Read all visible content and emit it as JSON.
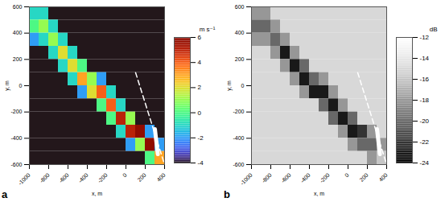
{
  "chart_data": [
    {
      "type": "heatmap",
      "panel_label": "a",
      "xlabel": "x, m",
      "ylabel": "y, m",
      "xlim": [
        -1000,
        400
      ],
      "ylim": [
        -600,
        600
      ],
      "xticks": [
        -1000,
        -800,
        -600,
        -400,
        -200,
        0,
        200,
        400
      ],
      "yticks": [
        -600,
        -400,
        -200,
        0,
        200,
        400,
        600
      ],
      "color": "jet",
      "x": [
        -950,
        -850,
        -750,
        -650,
        -550,
        -450,
        -350,
        -250,
        -150,
        -50,
        50,
        150,
        250,
        350
      ],
      "y": [
        550,
        450,
        350,
        250,
        150,
        50,
        -50,
        -150,
        -250,
        -350,
        -450,
        -550
      ],
      "cells": [
        [
          -1,
          -1,
          -4,
          -4,
          -4,
          -4,
          -4,
          -4,
          -4,
          -4,
          -4,
          -4,
          -4,
          -4
        ],
        [
          0,
          1,
          -1,
          -4,
          -4,
          -4,
          -4,
          -4,
          -4,
          -4,
          -4,
          -4,
          -4,
          -4
        ],
        [
          -2,
          -1,
          1,
          -1,
          -4,
          -4,
          -4,
          -4,
          -4,
          -4,
          -4,
          -4,
          -4,
          -4
        ],
        [
          -4,
          -4,
          -1,
          2,
          -1,
          -4,
          -4,
          -4,
          -4,
          -4,
          -4,
          -4,
          -4,
          -4
        ],
        [
          -4,
          -4,
          -4,
          -1,
          2,
          0,
          -4,
          -4,
          -4,
          -4,
          -4,
          -4,
          -4,
          -4
        ],
        [
          -4,
          -4,
          -4,
          -4,
          -1,
          3,
          1,
          -2,
          -4,
          -4,
          -4,
          -4,
          -4,
          -4
        ],
        [
          -4,
          -4,
          -4,
          -4,
          -4,
          -2,
          2,
          4,
          -1,
          -4,
          -4,
          -4,
          -4,
          -4
        ],
        [
          -4,
          -4,
          -4,
          -4,
          -4,
          -4,
          -4,
          0,
          4,
          -1,
          -4,
          -4,
          -4,
          -4
        ],
        [
          -4,
          -4,
          -4,
          -4,
          -4,
          -4,
          -4,
          -4,
          0,
          5,
          1,
          -4,
          -4,
          -4
        ],
        [
          -4,
          -4,
          -4,
          -4,
          -4,
          -4,
          -4,
          -4,
          -4,
          -1,
          5,
          6,
          -2,
          -4
        ],
        [
          -4,
          -4,
          -4,
          -4,
          -4,
          -4,
          -4,
          -4,
          -4,
          -4,
          -2,
          1,
          6,
          -2
        ],
        [
          -4,
          -4,
          -4,
          -4,
          -4,
          -4,
          -4,
          -4,
          -4,
          -4,
          -4,
          -4,
          0,
          3
        ]
      ],
      "colorbar": {
        "label": "m s⁻¹",
        "range": [
          -4,
          6
        ],
        "ticks": [
          -4,
          -2,
          0,
          2,
          4,
          6
        ]
      },
      "track": {
        "x": [
          100,
          400
        ],
        "y": [
          100,
          -600
        ]
      },
      "ship": {
        "x": [
          300,
          330
        ],
        "y": [
          -330,
          -520
        ]
      }
    },
    {
      "type": "heatmap",
      "panel_label": "b",
      "xlabel": "x, m",
      "ylabel": "y, m",
      "xlim": [
        -1000,
        400
      ],
      "ylim": [
        -600,
        600
      ],
      "xticks": [
        -1000,
        -800,
        -600,
        -400,
        -200,
        0,
        200,
        400
      ],
      "yticks": [
        -600,
        -400,
        -200,
        0,
        200,
        400,
        600
      ],
      "color": "grays",
      "x": [
        -950,
        -850,
        -750,
        -650,
        -550,
        -450,
        -350,
        -250,
        -150,
        -50,
        50,
        150,
        250,
        350
      ],
      "y": [
        550,
        450,
        350,
        250,
        150,
        50,
        -50,
        -150,
        -250,
        -350,
        -450,
        -550
      ],
      "cells": [
        [
          -18,
          -18,
          -15,
          -15,
          -15,
          -15,
          -15,
          -15,
          -15,
          -15,
          -15,
          -15,
          -15,
          -15
        ],
        [
          -20,
          -20,
          -18,
          -15,
          -15,
          -15,
          -15,
          -15,
          -15,
          -15,
          -15,
          -15,
          -15,
          -15
        ],
        [
          -18,
          -18,
          -20,
          -18,
          -15,
          -15,
          -15,
          -15,
          -15,
          -15,
          -15,
          -15,
          -15,
          -15
        ],
        [
          -15,
          -15,
          -18,
          -23,
          -18,
          -15,
          -15,
          -15,
          -15,
          -15,
          -15,
          -15,
          -15,
          -15
        ],
        [
          -15,
          -15,
          -15,
          -18,
          -23,
          -20,
          -15,
          -15,
          -15,
          -15,
          -15,
          -15,
          -15,
          -15
        ],
        [
          -15,
          -15,
          -15,
          -15,
          -18,
          -23,
          -20,
          -18,
          -15,
          -15,
          -15,
          -15,
          -15,
          -15
        ],
        [
          -15,
          -15,
          -15,
          -15,
          -15,
          -18,
          -23,
          -23,
          -18,
          -15,
          -15,
          -15,
          -15,
          -15
        ],
        [
          -15,
          -15,
          -15,
          -15,
          -15,
          -15,
          -15,
          -20,
          -23,
          -18,
          -15,
          -15,
          -15,
          -15
        ],
        [
          -15,
          -15,
          -15,
          -15,
          -15,
          -15,
          -15,
          -15,
          -20,
          -23,
          -20,
          -15,
          -15,
          -15
        ],
        [
          -15,
          -15,
          -15,
          -15,
          -15,
          -15,
          -15,
          -15,
          -15,
          -18,
          -23,
          -22,
          -18,
          -15
        ],
        [
          -15,
          -15,
          -15,
          -15,
          -15,
          -15,
          -15,
          -15,
          -15,
          -15,
          -18,
          -20,
          -20,
          -18
        ],
        [
          -15,
          -15,
          -15,
          -15,
          -15,
          -15,
          -15,
          -15,
          -15,
          -15,
          -15,
          -15,
          -18,
          -16
        ]
      ],
      "colorbar": {
        "label": "dB",
        "range": [
          -24,
          -12
        ],
        "ticks": [
          -24,
          -22,
          -20,
          -18,
          -16,
          -14,
          -12
        ]
      },
      "track": {
        "x": [
          100,
          400
        ],
        "y": [
          100,
          -600
        ]
      },
      "ship": {
        "x": [
          300,
          330
        ],
        "y": [
          -330,
          -520
        ]
      }
    }
  ]
}
